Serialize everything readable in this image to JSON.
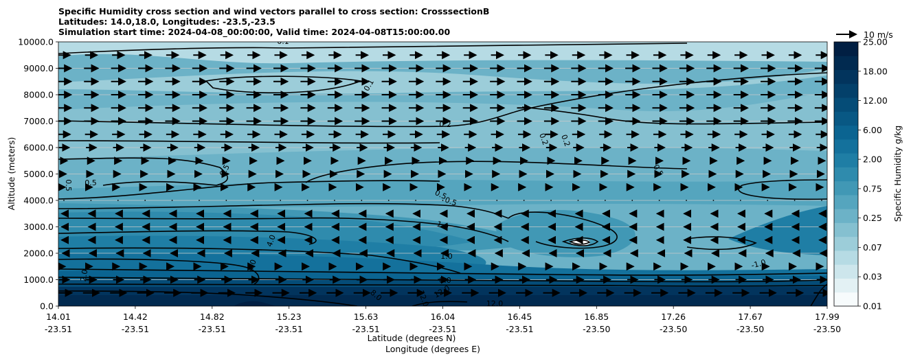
{
  "chart_data": {
    "type": "heatmap",
    "title_lines": [
      "Specific Humidity cross section and wind vectors parallel to cross section: CrosssectionB",
      "Latitudes: 14.0,18.0, Longitudes: -23.5,-23.5",
      "Simulation start time: 2024-04-08_00:00:00, Valid time: 2024-04-08T15:00:00.00"
    ],
    "xlabel_lat": "Latitude (degrees N)",
    "xlabel_lon": "Longitude (degrees E)",
    "ylabel": "Altitude (meters)",
    "ylim": [
      0,
      10000
    ],
    "y_ticks": [
      "0.0",
      "1000.0",
      "2000.0",
      "3000.0",
      "4000.0",
      "5000.0",
      "6000.0",
      "7000.0",
      "8000.0",
      "9000.0",
      "10000.0"
    ],
    "x_ticks": [
      {
        "lat": "14.01",
        "lon": "-23.51"
      },
      {
        "lat": "14.42",
        "lon": "-23.51"
      },
      {
        "lat": "14.82",
        "lon": "-23.51"
      },
      {
        "lat": "15.23",
        "lon": "-23.51"
      },
      {
        "lat": "15.63",
        "lon": "-23.51"
      },
      {
        "lat": "16.04",
        "lon": "-23.51"
      },
      {
        "lat": "16.45",
        "lon": "-23.51"
      },
      {
        "lat": "16.85",
        "lon": "-23.50"
      },
      {
        "lat": "17.26",
        "lon": "-23.50"
      },
      {
        "lat": "17.67",
        "lon": "-23.50"
      },
      {
        "lat": "17.99",
        "lon": "-23.50"
      }
    ],
    "grid": "horizontal",
    "colorbar": {
      "label": "Specific Humidity g/kg",
      "tick_labels": [
        "0.01",
        "0.03",
        "0.07",
        "0.25",
        "0.75",
        "2.00",
        "6.00",
        "12.00",
        "18.00",
        "25.00"
      ],
      "colors": [
        "#f7fbfc",
        "#e3f1f4",
        "#cde6ec",
        "#b6dbe4",
        "#9ccdd9",
        "#85c0d0",
        "#6cb2c7",
        "#55a5be",
        "#4198b5",
        "#2f8bad",
        "#1f7ea5",
        "#14719c",
        "#0b6491",
        "#085884",
        "#054c77",
        "#03406a",
        "#02345d",
        "#012a50",
        "#011f43"
      ]
    },
    "wind_key": {
      "label": "10 m/s",
      "speed": 10
    },
    "contour_labels": [
      "0.1",
      "0.1",
      "0.2",
      "0.2",
      "0.2",
      "0.5",
      "0.5",
      "0.5",
      "0.5",
      "0.5",
      "0.5",
      "1.0",
      "1.0",
      "-1.0",
      "2.0",
      "4.0",
      "4.0",
      "8.0",
      "8.0",
      "12.0",
      "12.0",
      "12.0"
    ],
    "wind_field_ms": [
      {
        "altitude_m": 500,
        "u": 8
      },
      {
        "altitude_m": 1000,
        "u": 5
      },
      {
        "altitude_m": 1500,
        "u": 1
      },
      {
        "altitude_m": 2000,
        "u": -1
      },
      {
        "altitude_m": 2500,
        "u": -2
      },
      {
        "altitude_m": 3000,
        "u": -2
      },
      {
        "altitude_m": 3500,
        "u": -2
      },
      {
        "altitude_m": 4000,
        "u": 0
      },
      {
        "altitude_m": 4500,
        "u": 1
      },
      {
        "altitude_m": 5000,
        "u": 2
      },
      {
        "altitude_m": 5500,
        "u": 3
      },
      {
        "altitude_m": 6000,
        "u": 5
      },
      {
        "altitude_m": 6500,
        "u": 6
      },
      {
        "altitude_m": 7000,
        "u": 7
      },
      {
        "altitude_m": 7500,
        "u": 7
      },
      {
        "altitude_m": 8000,
        "u": 7
      },
      {
        "altitude_m": 8500,
        "u": 7
      },
      {
        "altitude_m": 9000,
        "u": 7
      },
      {
        "altitude_m": 9500,
        "u": 6
      }
    ]
  }
}
